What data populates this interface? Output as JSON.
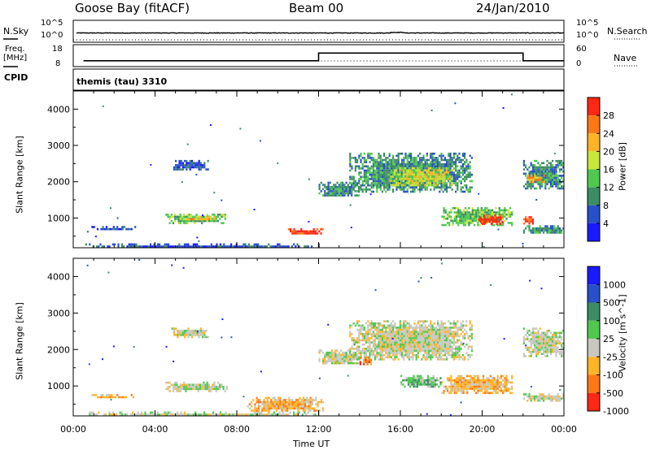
{
  "header": {
    "station": "Goose Bay (fitACF)",
    "beam": "Beam 00",
    "date": "24/Jan/2010"
  },
  "noise_panel": {
    "left_label": "N.Sky",
    "right_label": "N.Search",
    "left_ticks": [
      "10^5",
      "10^0"
    ],
    "right_ticks": [
      "10^5",
      "10^0"
    ]
  },
  "freq_panel": {
    "left_label_line1": "Freq.",
    "left_label_line2": "[MHz]",
    "right_label": "Nave",
    "left_ticks": [
      "18",
      "8"
    ],
    "right_ticks": [
      "60",
      "0"
    ]
  },
  "cpid": {
    "label": "CPID",
    "program": "themis (tau) 3310"
  },
  "colors": {
    "power_scale": [
      "#1a1aff",
      "#2850c8",
      "#3c8c64",
      "#50c850",
      "#c8e63c",
      "#ffb428",
      "#ff7814",
      "#ff2814"
    ],
    "velocity_scale": [
      "#1a1aff",
      "#2850c8",
      "#3c8c64",
      "#50c850",
      "#c8c8c0",
      "#ffb428",
      "#ff7814",
      "#ff2814"
    ]
  },
  "chart_data": [
    {
      "type": "line",
      "series": [
        {
          "name": "N.Sky",
          "x": [
            "00:00",
            "00:30",
            "02:00",
            "04:00",
            "06:00",
            "08:00",
            "10:00",
            "12:00",
            "14:00",
            "16:00",
            "18:00",
            "20:00",
            "22:00",
            "24:00"
          ],
          "values": [
            100.0,
            100.0,
            100.0,
            100.0,
            100.0,
            100.0,
            100.0,
            100.0,
            100.0,
            130.0,
            100.0,
            100.0,
            100.0,
            100.0
          ]
        },
        {
          "name": "N.Search",
          "x": [
            "00:00",
            "24:00"
          ],
          "values": [
            1.0,
            1.0
          ]
        }
      ],
      "ylabel": "N.Sky",
      "xlim": [
        "00:00",
        "24:00"
      ]
    },
    {
      "type": "line",
      "series": [
        {
          "name": "Freq.",
          "x": [
            "00:30",
            "12:00",
            "12:00",
            "22:00",
            "22:00",
            "24:00"
          ],
          "values": [
            10,
            10,
            14.5,
            14.5,
            10,
            10
          ]
        },
        {
          "name": "Nave",
          "x": [
            "00:30",
            "24:00"
          ],
          "values": [
            15,
            15
          ]
        }
      ],
      "ylabel": "Freq. [MHz]",
      "ylim": [
        8,
        18
      ],
      "xlim": [
        "00:00",
        "24:00"
      ]
    },
    {
      "type": "heatmap",
      "quantity": "Power",
      "ylabel": "Slant Range [km]",
      "colorbar_label": "Power [dB]",
      "colorbar_ticks": [
        "28",
        "24",
        "20",
        "16",
        "12",
        "8",
        "4"
      ],
      "yticks": [
        "1000",
        "2000",
        "3000",
        "4000"
      ],
      "ylim": [
        180,
        4500
      ],
      "xlim": [
        "00:00",
        "24:00"
      ],
      "regions": [
        {
          "t": [
            0.5,
            12.0
          ],
          "r": [
            200,
            300
          ],
          "level": 1
        },
        {
          "t": [
            0.8,
            3.0
          ],
          "r": [
            700,
            780
          ],
          "level": 1
        },
        {
          "t": [
            4.5,
            7.5
          ],
          "r": [
            880,
            1120
          ],
          "level": 3
        },
        {
          "t": [
            5.2,
            7.0
          ],
          "r": [
            950,
            1050
          ],
          "level": 5
        },
        {
          "t": [
            4.8,
            6.6
          ],
          "r": [
            2350,
            2600
          ],
          "level": 1
        },
        {
          "t": [
            10.5,
            12.2
          ],
          "r": [
            550,
            720
          ],
          "level": 7
        },
        {
          "t": [
            12.0,
            14.0
          ],
          "r": [
            1600,
            2000
          ],
          "level": 2
        },
        {
          "t": [
            13.5,
            19.5
          ],
          "r": [
            1700,
            2800
          ],
          "level": 2
        },
        {
          "t": [
            15.5,
            18.5
          ],
          "r": [
            1900,
            2400
          ],
          "level": 4
        },
        {
          "t": [
            18.0,
            21.5
          ],
          "r": [
            800,
            1300
          ],
          "level": 3
        },
        {
          "t": [
            19.8,
            21.0
          ],
          "r": [
            850,
            1100
          ],
          "level": 7
        },
        {
          "t": [
            22.0,
            22.5
          ],
          "r": [
            850,
            1050
          ],
          "level": 7
        },
        {
          "t": [
            22.0,
            24.0
          ],
          "r": [
            1800,
            2600
          ],
          "level": 2
        },
        {
          "t": [
            22.2,
            23.0
          ],
          "r": [
            2000,
            2200
          ],
          "level": 5
        },
        {
          "t": [
            22.0,
            24.0
          ],
          "r": [
            600,
            800
          ],
          "level": 2
        }
      ]
    },
    {
      "type": "heatmap",
      "quantity": "Velocity",
      "ylabel": "Slant Range [km]",
      "colorbar_label": "Velocity [m s^-1]",
      "colorbar_ticks": [
        "1000",
        "500",
        "100",
        "25",
        "-25",
        "-100",
        "-500",
        "-1000"
      ],
      "yticks": [
        "1000",
        "2000",
        "3000",
        "4000"
      ],
      "xticks": [
        "00:00",
        "04:00",
        "08:00",
        "12:00",
        "16:00",
        "20:00",
        "00:00"
      ],
      "xlabel": "Time UT",
      "ylim": [
        180,
        4500
      ],
      "xlim": [
        "00:00",
        "24:00"
      ],
      "regions": [
        {
          "t": [
            0.5,
            12.0
          ],
          "r": [
            200,
            300
          ],
          "level": 4
        },
        {
          "t": [
            0.8,
            3.0
          ],
          "r": [
            700,
            780
          ],
          "level": 5
        },
        {
          "t": [
            4.5,
            7.5
          ],
          "r": [
            880,
            1120
          ],
          "level": 4
        },
        {
          "t": [
            4.8,
            6.6
          ],
          "r": [
            2350,
            2600
          ],
          "level": 4
        },
        {
          "t": [
            8.5,
            12.2
          ],
          "r": [
            300,
            700
          ],
          "level": 5
        },
        {
          "t": [
            12.0,
            14.0
          ],
          "r": [
            1600,
            2000
          ],
          "level": 4
        },
        {
          "t": [
            13.5,
            19.5
          ],
          "r": [
            1700,
            2800
          ],
          "level": 4
        },
        {
          "t": [
            14.0,
            14.6
          ],
          "r": [
            1600,
            1800
          ],
          "level": 6
        },
        {
          "t": [
            18.0,
            21.5
          ],
          "r": [
            800,
            1300
          ],
          "level": 5
        },
        {
          "t": [
            16.0,
            18.0
          ],
          "r": [
            1000,
            1300
          ],
          "level": 3
        },
        {
          "t": [
            22.0,
            24.0
          ],
          "r": [
            1800,
            2600
          ],
          "level": 4
        },
        {
          "t": [
            22.0,
            24.0
          ],
          "r": [
            600,
            800
          ],
          "level": 4
        }
      ]
    }
  ]
}
